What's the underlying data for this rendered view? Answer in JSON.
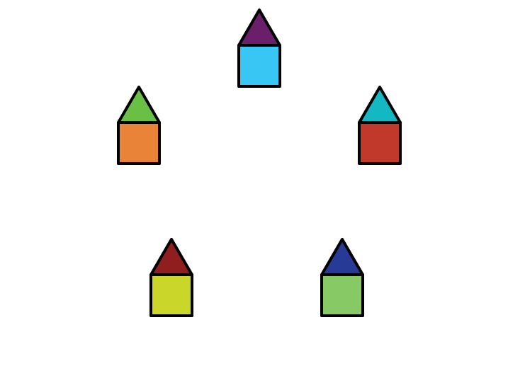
{
  "houses": [
    {
      "id": "top",
      "roof_color": "#6b1f6b",
      "body_color": "#38c6f4"
    },
    {
      "id": "upper-left",
      "roof_color": "#6abf45",
      "body_color": "#e88338"
    },
    {
      "id": "upper-right",
      "roof_color": "#14b8c2",
      "body_color": "#c0392b"
    },
    {
      "id": "lower-left",
      "roof_color": "#901e1e",
      "body_color": "#cbd62a"
    },
    {
      "id": "lower-right",
      "roof_color": "#263a96",
      "body_color": "#86c965"
    }
  ],
  "outline_color": "#000000"
}
